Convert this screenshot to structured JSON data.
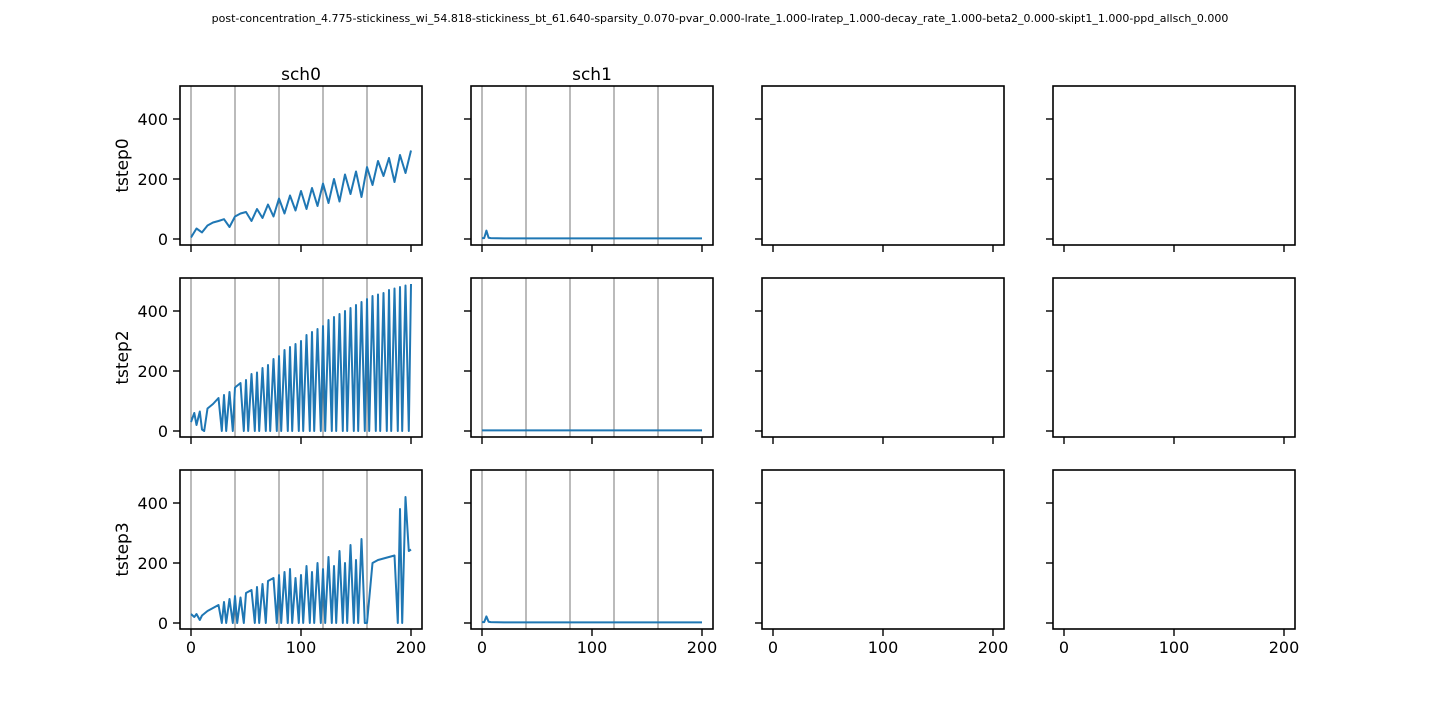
{
  "figure": {
    "title": "post-concentration_4.775-stickiness_wi_54.818-stickiness_bt_61.640-sparsity_0.070-pvar_0.000-lrate_1.000-lratep_1.000-decay_rate_1.000-beta2_0.000-skipt1_1.000-ppd_allsch_0.000"
  },
  "chart_data": {
    "type": "line",
    "grid": "vertical lines at x = 0, 40, 80, 120, 160 on data panels",
    "line_color": "#1f77b4",
    "columns": [
      "sch0",
      "sch1",
      "",
      ""
    ],
    "rows": [
      "tstep0",
      "tstep2",
      "tstep3"
    ],
    "xlim": [
      -10,
      210
    ],
    "ylim": [
      -20,
      510
    ],
    "xticks": [
      0,
      100,
      200
    ],
    "yticks": [
      0,
      200,
      400
    ],
    "vlines": [
      0,
      40,
      80,
      120,
      160
    ],
    "panels": [
      {
        "row": "tstep0",
        "column": "sch0",
        "series": [
          {
            "x": [
              0,
              5,
              10,
              15,
              20,
              25,
              30,
              35,
              40,
              45,
              50,
              55,
              60,
              65,
              70,
              75,
              80,
              85,
              90,
              95,
              100,
              105,
              110,
              115,
              120,
              125,
              130,
              135,
              140,
              145,
              150,
              155,
              160,
              165,
              170,
              175,
              180,
              185,
              190,
              195,
              200
            ],
            "y": [
              5,
              35,
              22,
              45,
              55,
              60,
              66,
              40,
              75,
              85,
              90,
              60,
              100,
              70,
              115,
              75,
              135,
              85,
              145,
              95,
              160,
              100,
              170,
              110,
              185,
              120,
              200,
              125,
              215,
              150,
              225,
              140,
              240,
              180,
              260,
              210,
              270,
              190,
              280,
              220,
              295
            ]
          }
        ]
      },
      {
        "row": "tstep0",
        "column": "sch1",
        "series": [
          {
            "x": [
              0,
              2,
              4,
              6,
              8,
              20,
              40,
              60,
              80,
              100,
              120,
              140,
              160,
              180,
              200
            ],
            "y": [
              3,
              3,
              28,
              4,
              3,
              2,
              2,
              2,
              2,
              2,
              2,
              2,
              2,
              2,
              2
            ]
          }
        ]
      },
      {
        "row": "tstep0",
        "column": "",
        "series": []
      },
      {
        "row": "tstep0",
        "column": "",
        "series": []
      },
      {
        "row": "tstep2",
        "column": "sch0",
        "series": [
          {
            "x": [
              0,
              3,
              5,
              8,
              10,
              12,
              15,
              20,
              25,
              28,
              30,
              32,
              35,
              38,
              40,
              45,
              48,
              50,
              52,
              55,
              58,
              60,
              62,
              65,
              68,
              70,
              72,
              75,
              78,
              80,
              82,
              85,
              88,
              90,
              92,
              95,
              98,
              100,
              102,
              105,
              108,
              110,
              112,
              115,
              118,
              120,
              122,
              125,
              128,
              130,
              132,
              135,
              138,
              140,
              142,
              145,
              148,
              150,
              152,
              155,
              158,
              160,
              162,
              165,
              168,
              170,
              172,
              175,
              178,
              180,
              182,
              185,
              188,
              190,
              192,
              195,
              198,
              200
            ],
            "y": [
              30,
              60,
              20,
              65,
              5,
              0,
              75,
              90,
              110,
              0,
              120,
              0,
              130,
              0,
              145,
              160,
              0,
              170,
              0,
              190,
              0,
              195,
              0,
              210,
              0,
              220,
              0,
              240,
              0,
              250,
              0,
              270,
              0,
              280,
              0,
              290,
              0,
              300,
              0,
              320,
              0,
              330,
              0,
              340,
              0,
              350,
              0,
              370,
              0,
              380,
              0,
              390,
              0,
              400,
              0,
              410,
              0,
              420,
              0,
              430,
              0,
              440,
              0,
              450,
              0,
              455,
              0,
              460,
              0,
              470,
              0,
              475,
              0,
              480,
              0,
              485,
              0,
              490
            ]
          }
        ]
      },
      {
        "row": "tstep2",
        "column": "sch1",
        "series": [
          {
            "x": [
              0,
              20,
              40,
              60,
              80,
              100,
              120,
              140,
              160,
              180,
              200
            ],
            "y": [
              2,
              2,
              2,
              2,
              2,
              2,
              2,
              2,
              2,
              2,
              2
            ]
          }
        ]
      },
      {
        "row": "tstep2",
        "column": "",
        "series": []
      },
      {
        "row": "tstep2",
        "column": "",
        "series": []
      },
      {
        "row": "tstep3",
        "column": "sch0",
        "series": [
          {
            "x": [
              0,
              3,
              5,
              8,
              10,
              15,
              20,
              25,
              28,
              30,
              32,
              35,
              38,
              40,
              42,
              45,
              48,
              50,
              55,
              58,
              60,
              62,
              65,
              68,
              70,
              75,
              78,
              80,
              82,
              85,
              88,
              90,
              92,
              95,
              98,
              100,
              102,
              105,
              108,
              110,
              112,
              115,
              118,
              120,
              122,
              125,
              128,
              130,
              132,
              135,
              138,
              140,
              142,
              145,
              148,
              150,
              152,
              155,
              158,
              160,
              165,
              170,
              175,
              180,
              185,
              188,
              190,
              192,
              195,
              198,
              200
            ],
            "y": [
              30,
              20,
              30,
              10,
              25,
              40,
              50,
              60,
              0,
              70,
              0,
              80,
              0,
              90,
              0,
              85,
              0,
              100,
              110,
              0,
              120,
              0,
              130,
              0,
              140,
              150,
              0,
              160,
              0,
              170,
              0,
              180,
              0,
              150,
              0,
              160,
              0,
              190,
              0,
              170,
              0,
              200,
              0,
              180,
              0,
              220,
              0,
              190,
              0,
              240,
              0,
              200,
              0,
              260,
              0,
              210,
              0,
              280,
              0,
              0,
              200,
              210,
              215,
              220,
              225,
              0,
              380,
              0,
              420,
              240,
              245
            ]
          }
        ]
      },
      {
        "row": "tstep3",
        "column": "sch1",
        "series": [
          {
            "x": [
              0,
              2,
              4,
              6,
              8,
              20,
              40,
              60,
              80,
              100,
              120,
              140,
              160,
              180,
              200
            ],
            "y": [
              3,
              3,
              22,
              4,
              3,
              2,
              2,
              2,
              2,
              2,
              2,
              2,
              2,
              2,
              2
            ]
          }
        ]
      },
      {
        "row": "tstep3",
        "column": "",
        "series": []
      },
      {
        "row": "tstep3",
        "column": "",
        "series": []
      }
    ]
  }
}
